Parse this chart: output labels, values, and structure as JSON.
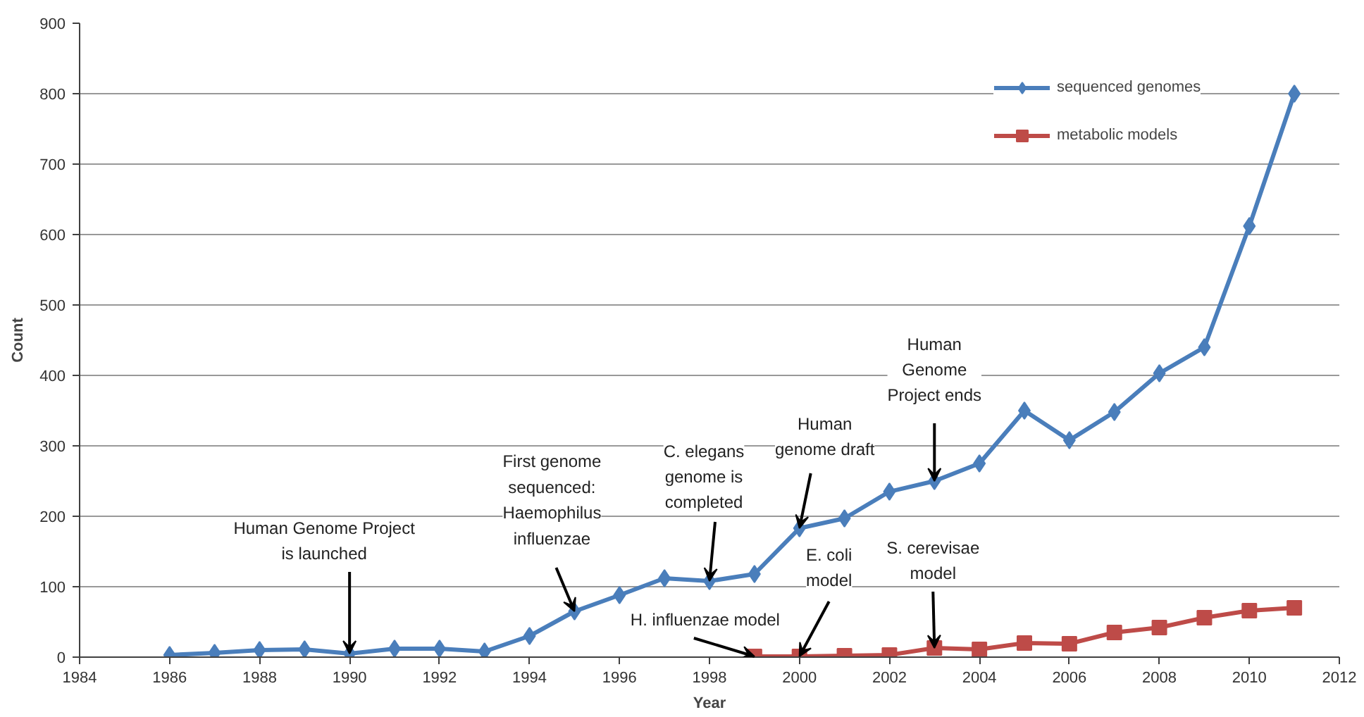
{
  "chart_data": {
    "type": "line",
    "xlabel": "Year",
    "ylabel": "Count",
    "xlim": [
      1984,
      2012
    ],
    "xticks": [
      1984,
      1986,
      1988,
      1990,
      1992,
      1994,
      1996,
      1998,
      2000,
      2002,
      2004,
      2006,
      2008,
      2010,
      2012
    ],
    "ylim": [
      0,
      900
    ],
    "yticks": [
      0,
      100,
      200,
      300,
      400,
      500,
      600,
      700,
      800,
      900
    ],
    "grid": "y",
    "legend": "top right",
    "line_style": "solid",
    "series": [
      {
        "name": "sequenced genomes",
        "color": "#4a7ebb",
        "marker": "diamond",
        "x": [
          1986,
          1987,
          1988,
          1989,
          1990,
          1991,
          1992,
          1993,
          1994,
          1995,
          1996,
          1997,
          1998,
          1999,
          2000,
          2001,
          2002,
          2003,
          2004,
          2005,
          2006,
          2007,
          2008,
          2009,
          2010,
          2011
        ],
        "values": [
          3,
          6,
          10,
          11,
          5,
          12,
          12,
          8,
          30,
          65,
          88,
          112,
          108,
          118,
          183,
          197,
          235,
          250,
          275,
          350,
          308,
          348,
          403,
          440,
          612,
          800
        ]
      },
      {
        "name": "metabolic models",
        "color": "#be4b48",
        "marker": "square",
        "x": [
          1999,
          2000,
          2001,
          2002,
          2003,
          2004,
          2005,
          2006,
          2007,
          2008,
          2009,
          2010,
          2011
        ],
        "values": [
          1,
          1,
          2,
          3,
          13,
          11,
          20,
          19,
          35,
          42,
          56,
          66,
          70
        ]
      }
    ],
    "annotations": [
      {
        "text": "Human Genome Project\nis launched",
        "x": 1990,
        "y": 5
      },
      {
        "text": "First genome\nsequenced:\nHaemophilus\ninfluenzae",
        "x": 1995,
        "y": 65
      },
      {
        "text": "C. elegans\ngenome is\ncompleted",
        "x": 1998,
        "y": 108
      },
      {
        "text": "Human\ngenome draft",
        "x": 2000,
        "y": 183
      },
      {
        "text": "Human\nGenome\nProject ends",
        "x": 2003,
        "y": 250
      },
      {
        "text": "H. influenzae model",
        "x": 1999,
        "y": 1
      },
      {
        "text": "E. coli\nmodel",
        "x": 2000,
        "y": 1
      },
      {
        "text": "S. cerevisae\nmodel",
        "x": 2003,
        "y": 13
      }
    ]
  }
}
